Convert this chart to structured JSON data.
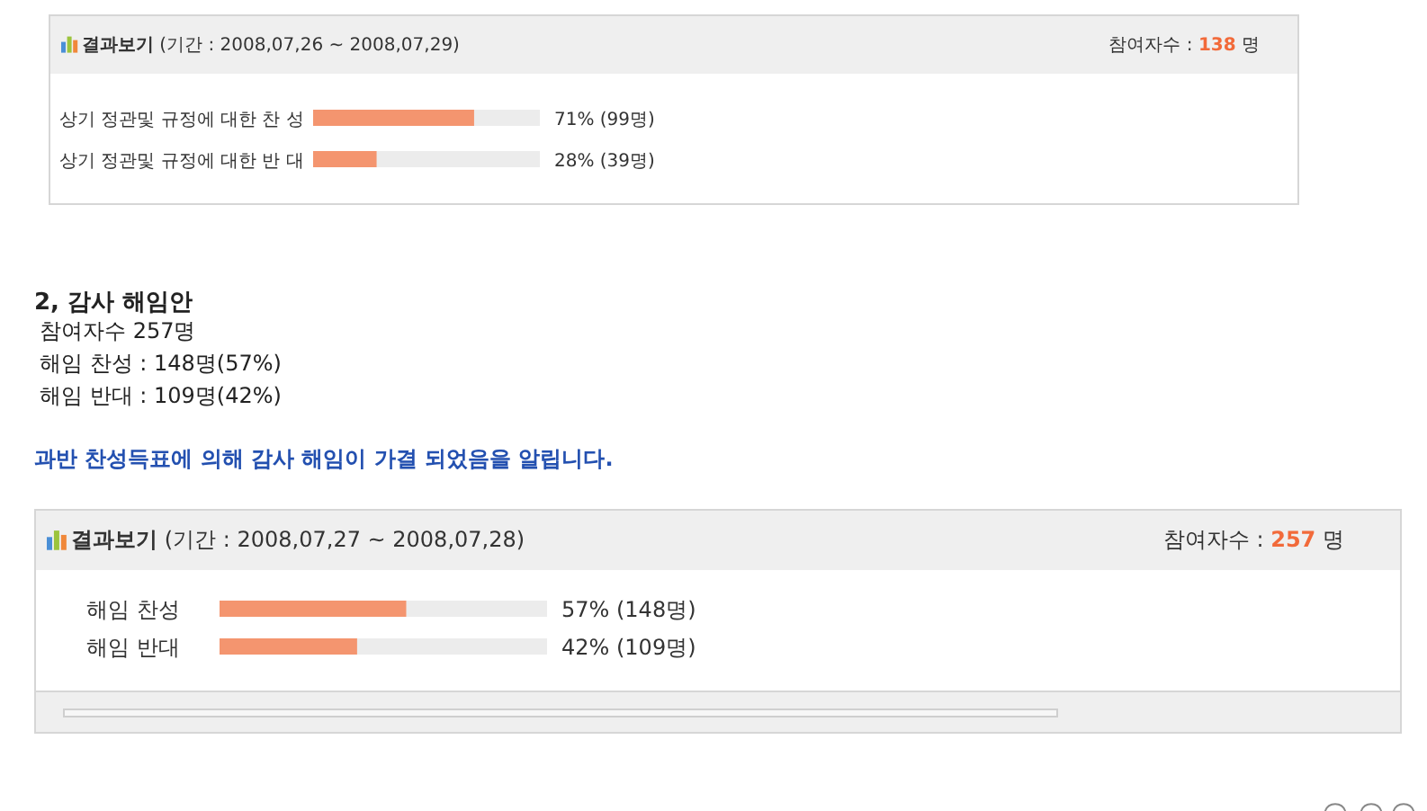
{
  "chart_data": [
    {
      "type": "bar",
      "orientation": "horizontal",
      "title": "결과보기 (기간 : 2008,07,26 ~ 2008,07,29)",
      "categories": [
        "상기 정관및 규정에 대한 찬 성",
        "상기 정관및 규정에 대한 반 대"
      ],
      "values": [
        71,
        28
      ],
      "value_labels": [
        "71% (99명)",
        "28% (39명)"
      ],
      "color": "#f4956f",
      "xlim": [
        0,
        100
      ],
      "tick_labels": "y",
      "annotations": [
        "참여자수 : 138 명"
      ]
    },
    {
      "type": "bar",
      "orientation": "horizontal",
      "title": "결과보기 (기간 : 2008,07,27 ~ 2008,07,28)",
      "categories": [
        "해임 찬성",
        "해임 반대"
      ],
      "values": [
        57,
        42
      ],
      "value_labels": [
        "57% (148명)",
        "42% (109명)"
      ],
      "color": "#f4956f",
      "xlim": [
        0,
        100
      ],
      "tick_labels": "y",
      "annotations": [
        "2, 감사 해임안",
        "참여자수 257명",
        "해임 찬성 : 148명(57%)",
        "해임 반대 : 109명(42%)",
        "과반 찬성득표에 의해 감사 해임이 가결 되었음을 알립니다.",
        "참여자수 : 257 명"
      ]
    }
  ]
}
